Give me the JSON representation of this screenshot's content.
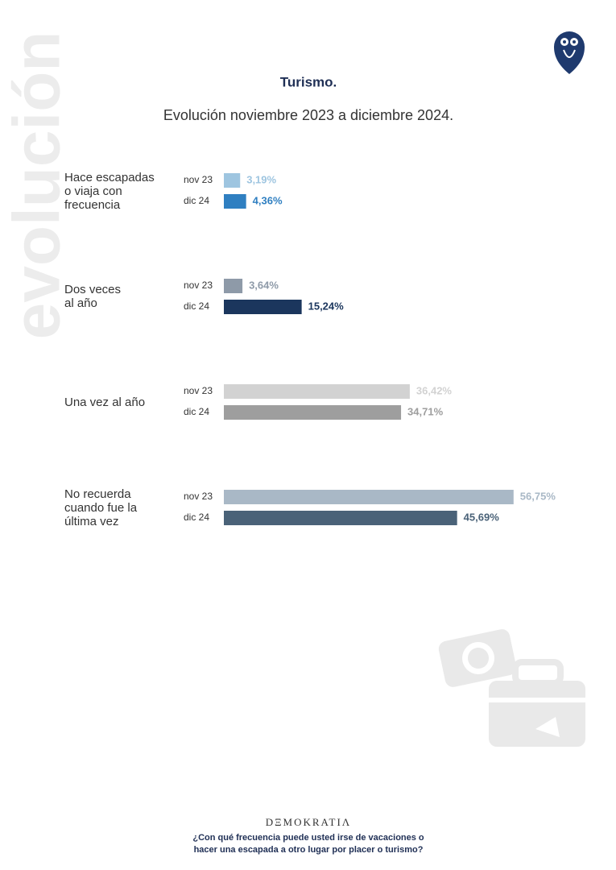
{
  "chart_data": {
    "type": "bar",
    "orientation": "horizontal",
    "watermark": "evolución",
    "title": "Turismo.",
    "subtitle": "Evolución noviembre 2023 a diciembre 2024.",
    "categories": [
      "Hace escapadas\no viaja con\nfrecuencia",
      "Dos veces\nal año",
      "Una vez al año",
      "No recuerda\ncuando fue la\núltima vez"
    ],
    "series": [
      {
        "name": "nov 23",
        "values": [
          3.19,
          3.64,
          36.42,
          56.75
        ],
        "value_labels": [
          "3,19%",
          "3,64%",
          "36,42%",
          "56,75%"
        ],
        "colors": [
          "#9ec5e0",
          "#8e9aa8",
          "#d2d2d2",
          "#a9b8c6"
        ]
      },
      {
        "name": "dic 24",
        "values": [
          4.36,
          15.24,
          34.71,
          45.69
        ],
        "value_labels": [
          "4,36%",
          "15,24%",
          "34,71%",
          "45,69%"
        ],
        "colors": [
          "#2f7fc1",
          "#1b365d",
          "#9e9e9e",
          "#4a6278"
        ]
      }
    ],
    "brand": "DΞMOKRATIΛ",
    "note": [
      "¿Con qué frecuencia puede usted irse de vacaciones o",
      "hacer una escapada a otro lugar por placer o turismo?"
    ]
  }
}
